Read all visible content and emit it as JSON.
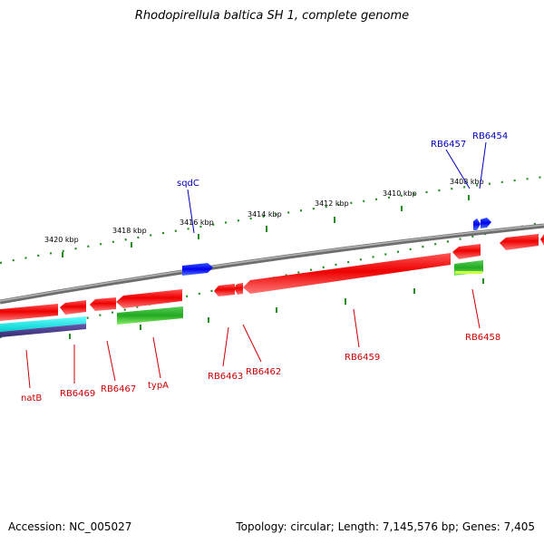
{
  "title": "Rhodopirellula baltica SH 1, complete genome",
  "footer": {
    "accession": "Accession: NC_005027",
    "topology": "Topology: circular; Length: 7,145,576 bp; Genes: 7,405"
  },
  "ticks": [
    "3420 kbp",
    "3418 kbp",
    "3416 kbp",
    "3414 kbp",
    "3412 kbp",
    "3410 kbp",
    "3408 kbp"
  ],
  "labels": {
    "natB": "natB",
    "RB6469": "RB6469",
    "RB6467": "RB6467",
    "typA": "typA",
    "RB6463": "RB6463",
    "RB6462": "RB6462",
    "RB6459": "RB6459",
    "RB6458": "RB6458",
    "sqdC": "sqdC",
    "RB6457": "RB6457",
    "RB6454": "RB6454"
  },
  "colors": {
    "forward_gene": "#0000ee",
    "reverse_gene": "#ee0000",
    "rna": "#22aa22",
    "backbone": "#808080",
    "tick": "#228b22",
    "cyan_track": "#00e5e5",
    "purple_track": "#4b3a8f"
  }
}
